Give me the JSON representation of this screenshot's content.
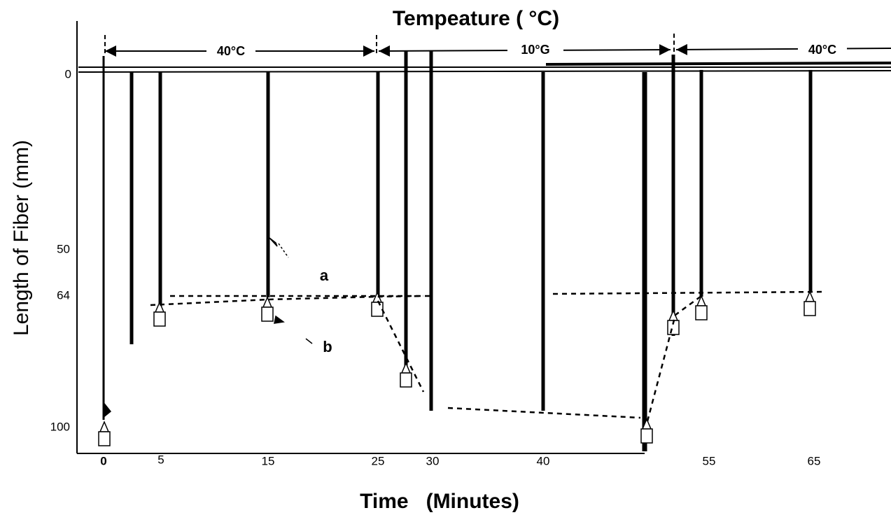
{
  "title": "Tempeature ( °C)",
  "temperature_labels": [
    "40°C",
    "10°G",
    "40°C"
  ],
  "y_axis": {
    "label": "Length of Fiber (mm)",
    "ticks": [
      "0",
      "50",
      "64",
      "100"
    ]
  },
  "x_axis": {
    "label": "Time   (Minutes)",
    "ticks": [
      "0",
      "5",
      "15",
      "25",
      "30",
      "40",
      "55",
      "65"
    ]
  },
  "annotations": [
    "a",
    "b"
  ]
}
